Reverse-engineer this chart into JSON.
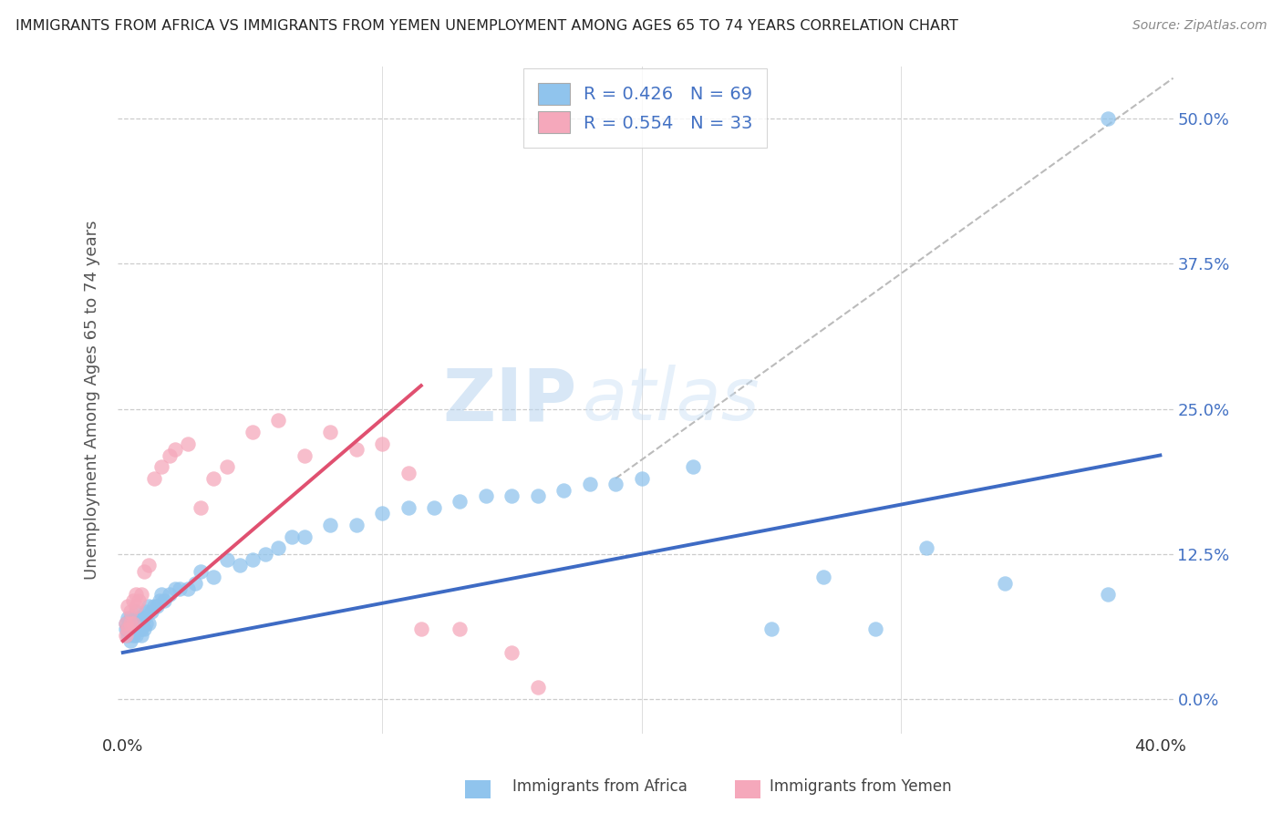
{
  "title": "IMMIGRANTS FROM AFRICA VS IMMIGRANTS FROM YEMEN UNEMPLOYMENT AMONG AGES 65 TO 74 YEARS CORRELATION CHART",
  "source": "Source: ZipAtlas.com",
  "ylabel": "Unemployment Among Ages 65 to 74 years",
  "ytick_values": [
    0.0,
    0.125,
    0.25,
    0.375,
    0.5
  ],
  "ytick_labels": [
    "0.0%",
    "12.5%",
    "25.0%",
    "37.5%",
    "50.0%"
  ],
  "xlim": [
    -0.002,
    0.405
  ],
  "ylim": [
    -0.03,
    0.545
  ],
  "legend1_label": "R = 0.426   N = 69",
  "legend2_label": "R = 0.554   N = 33",
  "color_africa": "#90c4ed",
  "color_yemen": "#f5a8bb",
  "color_africa_line": "#3e6bc4",
  "color_yemen_line": "#e05070",
  "watermark_zip": "ZIP",
  "watermark_atlas": "atlas",
  "africa_trend_x0": 0.0,
  "africa_trend_y0": 0.04,
  "africa_trend_x1": 0.4,
  "africa_trend_y1": 0.21,
  "yemen_trend_x0": 0.0,
  "yemen_trend_y0": 0.05,
  "yemen_trend_x1": 0.115,
  "yemen_trend_y1": 0.27,
  "dash_line_x0": 0.19,
  "dash_line_y0": 0.19,
  "dash_line_x1": 0.405,
  "dash_line_y1": 0.535,
  "africa_x": [
    0.001,
    0.001,
    0.002,
    0.002,
    0.002,
    0.003,
    0.003,
    0.003,
    0.003,
    0.004,
    0.004,
    0.004,
    0.005,
    0.005,
    0.005,
    0.005,
    0.006,
    0.006,
    0.006,
    0.007,
    0.007,
    0.007,
    0.008,
    0.008,
    0.009,
    0.009,
    0.01,
    0.01,
    0.011,
    0.012,
    0.013,
    0.014,
    0.015,
    0.016,
    0.018,
    0.02,
    0.022,
    0.025,
    0.028,
    0.03,
    0.035,
    0.04,
    0.045,
    0.05,
    0.055,
    0.06,
    0.065,
    0.07,
    0.08,
    0.09,
    0.1,
    0.11,
    0.12,
    0.13,
    0.14,
    0.15,
    0.16,
    0.17,
    0.18,
    0.19,
    0.2,
    0.22,
    0.25,
    0.27,
    0.29,
    0.31,
    0.34,
    0.38,
    0.38
  ],
  "africa_y": [
    0.06,
    0.065,
    0.055,
    0.06,
    0.07,
    0.05,
    0.06,
    0.065,
    0.07,
    0.055,
    0.06,
    0.065,
    0.055,
    0.065,
    0.07,
    0.075,
    0.06,
    0.065,
    0.07,
    0.055,
    0.06,
    0.07,
    0.06,
    0.07,
    0.065,
    0.075,
    0.065,
    0.08,
    0.075,
    0.08,
    0.08,
    0.085,
    0.09,
    0.085,
    0.09,
    0.095,
    0.095,
    0.095,
    0.1,
    0.11,
    0.105,
    0.12,
    0.115,
    0.12,
    0.125,
    0.13,
    0.14,
    0.14,
    0.15,
    0.15,
    0.16,
    0.165,
    0.165,
    0.17,
    0.175,
    0.175,
    0.175,
    0.18,
    0.185,
    0.185,
    0.19,
    0.2,
    0.06,
    0.105,
    0.06,
    0.13,
    0.1,
    0.5,
    0.09
  ],
  "yemen_x": [
    0.001,
    0.001,
    0.002,
    0.002,
    0.003,
    0.003,
    0.004,
    0.004,
    0.005,
    0.005,
    0.006,
    0.007,
    0.008,
    0.01,
    0.012,
    0.015,
    0.018,
    0.02,
    0.025,
    0.03,
    0.035,
    0.04,
    0.05,
    0.06,
    0.07,
    0.08,
    0.09,
    0.1,
    0.11,
    0.115,
    0.13,
    0.15,
    0.16
  ],
  "yemen_y": [
    0.055,
    0.065,
    0.06,
    0.08,
    0.065,
    0.075,
    0.065,
    0.085,
    0.08,
    0.09,
    0.085,
    0.09,
    0.11,
    0.115,
    0.19,
    0.2,
    0.21,
    0.215,
    0.22,
    0.165,
    0.19,
    0.2,
    0.23,
    0.24,
    0.21,
    0.23,
    0.215,
    0.22,
    0.195,
    0.06,
    0.06,
    0.04,
    0.01
  ]
}
